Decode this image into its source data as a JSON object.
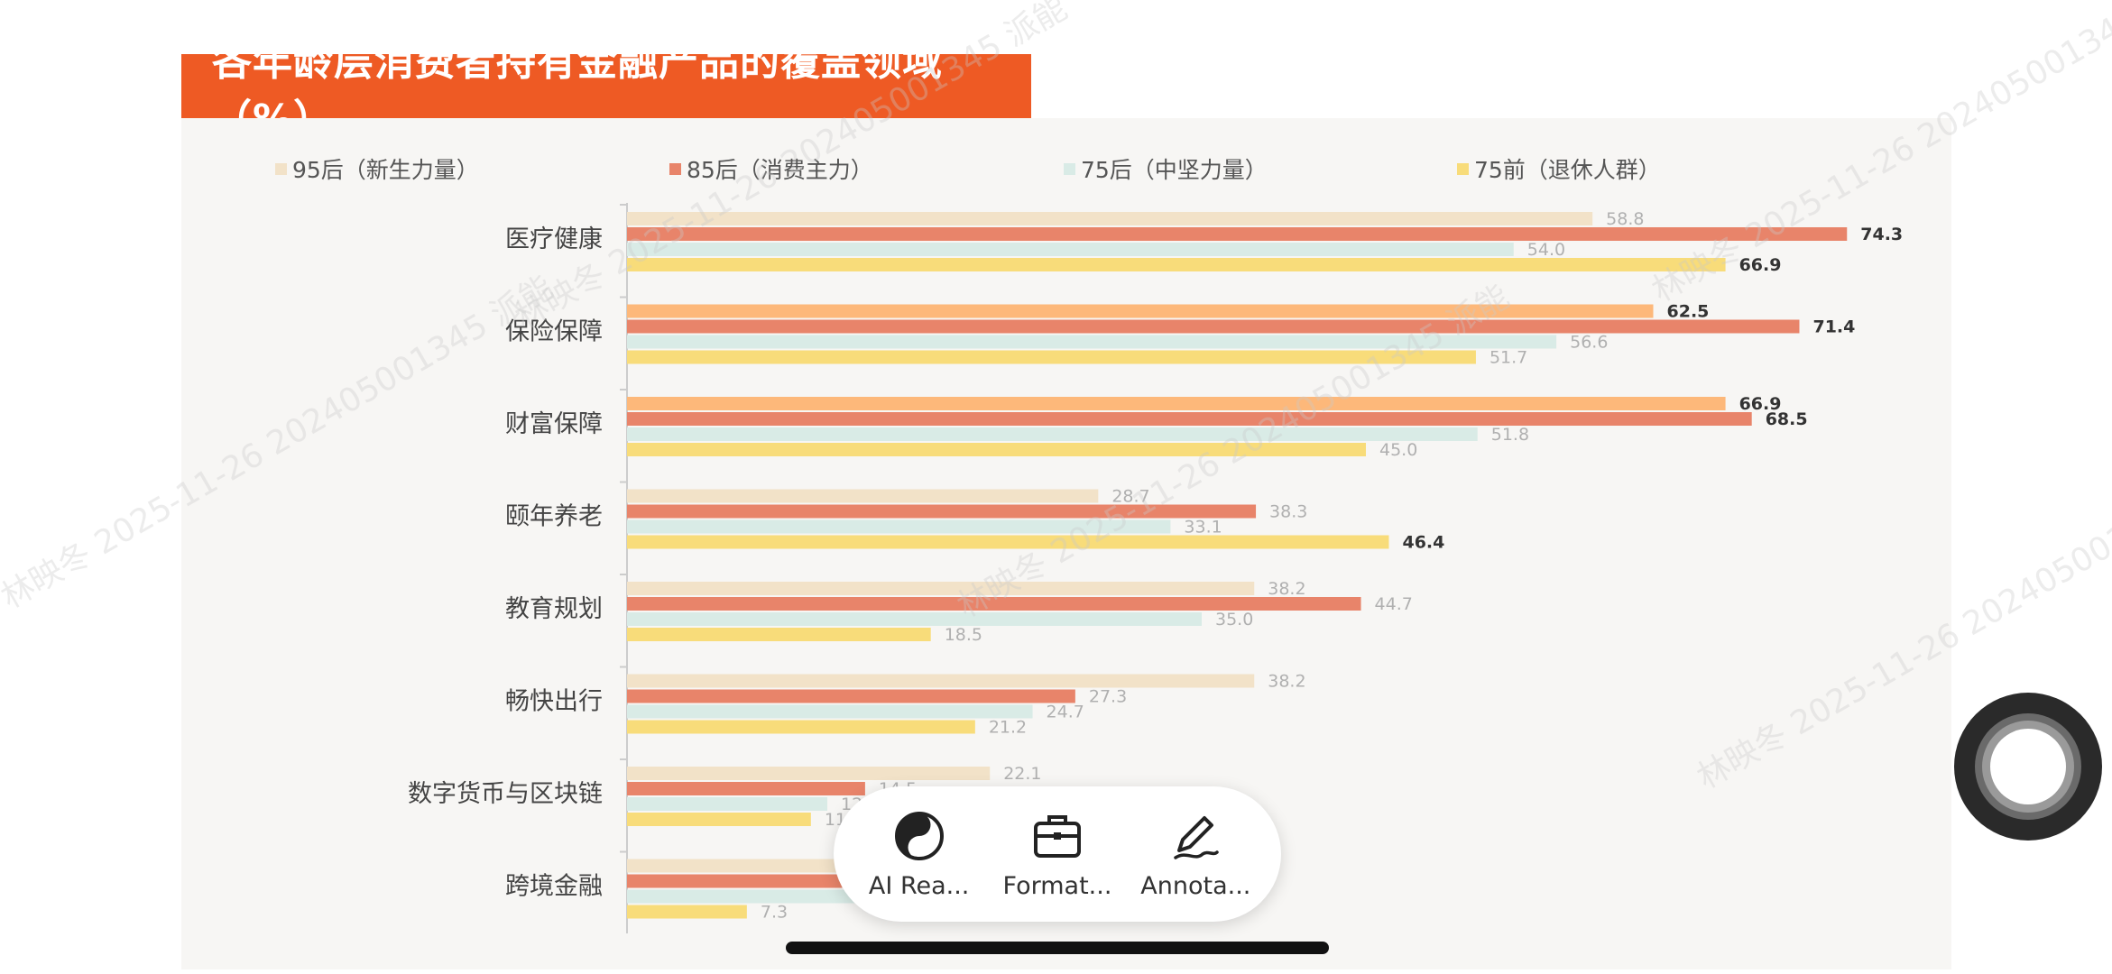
{
  "chart_data": {
    "type": "bar",
    "orientation": "horizontal",
    "title": "各年龄层消费者持有金融产品的覆盖领域（%）",
    "categories": [
      "医疗健康",
      "保险保障",
      "财富保障",
      "颐年养老",
      "教育规划",
      "畅快出行",
      "数字货币与区块链",
      "跨境金融"
    ],
    "series": [
      {
        "name": "95后（新生力量）",
        "color": "#f2e2c8",
        "values": [
          58.8,
          62.5,
          66.9,
          28.7,
          38.2,
          38.2,
          22.1,
          14.6
        ]
      },
      {
        "name": "85后（消费主力）",
        "color": "#e8846a",
        "values": [
          74.3,
          71.4,
          68.5,
          38.3,
          44.7,
          27.3,
          14.5,
          13.1
        ]
      },
      {
        "name": "75后（中坚力量）",
        "color": "#d9ebe6",
        "values": [
          54.0,
          56.6,
          51.8,
          33.1,
          35.0,
          24.7,
          12.2,
          14.0
        ]
      },
      {
        "name": "75前（退休人群）",
        "color": "#f8dc7a",
        "values": [
          66.9,
          51.7,
          45.0,
          46.4,
          18.5,
          21.2,
          11.2,
          7.3
        ]
      }
    ],
    "highlights": {
      "95后（新生力量）": [
        1,
        2
      ],
      "85后（消费主力）": [
        0,
        1,
        2
      ],
      "75前（退休人群）": [
        0,
        3
      ]
    },
    "highlight_color_95": "#fdb87a",
    "xlim": [
      0,
      100
    ],
    "legend_position": "top",
    "grid": false
  },
  "toolbar": {
    "items": [
      {
        "label": "AI Rea...",
        "icon": "ai-read-icon"
      },
      {
        "label": "Format...",
        "icon": "briefcase-icon"
      },
      {
        "label": "Annota...",
        "icon": "pen-icon"
      }
    ]
  },
  "watermark": "林映冬 2025-11-26 202405001345 派能",
  "colors": {
    "title_bg": "#ee5a24",
    "panel_bg": "#f7f6f4"
  }
}
